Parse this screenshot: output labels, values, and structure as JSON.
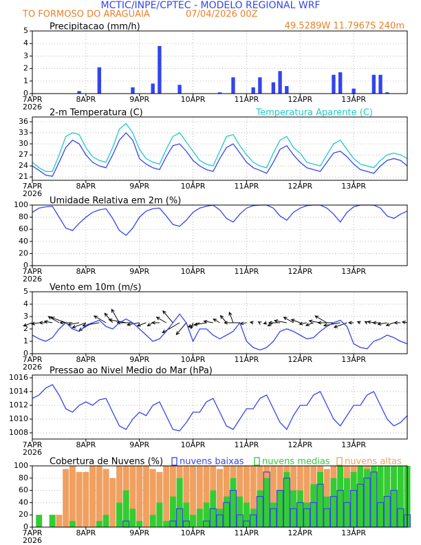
{
  "header": {
    "title": "MCTIC/INPE/CPTEC - MODELO REGIONAL WRF",
    "location": "TO FORMOSO DO ARAGUAIA",
    "run": "07/04/2026 00Z",
    "coords": "49.5289W 11.7967S 240m"
  },
  "chart_data": [
    {
      "type": "bar",
      "title": "Precipitacao (mm/h)",
      "year": "2026",
      "color": "#3344ee",
      "xlim": [
        0,
        168
      ],
      "xticks": [
        {
          "value": 0,
          "label": "7APR"
        },
        {
          "value": 24,
          "label": "8APR"
        },
        {
          "value": 48,
          "label": "9APR"
        },
        {
          "value": 72,
          "label": "10APR"
        },
        {
          "value": 96,
          "label": "11APR"
        },
        {
          "value": 120,
          "label": "12APR"
        },
        {
          "value": 144,
          "label": "13APR"
        }
      ],
      "ylim": [
        0,
        5
      ],
      "yticks": [
        0,
        1,
        2,
        3,
        4,
        5
      ],
      "grid": true,
      "x": [
        0,
        3,
        6,
        9,
        12,
        15,
        18,
        21,
        24,
        27,
        30,
        33,
        36,
        39,
        42,
        45,
        48,
        51,
        54,
        57,
        60,
        63,
        66,
        69,
        72,
        75,
        78,
        81,
        84,
        87,
        90,
        93,
        96,
        99,
        102,
        105,
        108,
        111,
        114,
        117,
        120,
        123,
        126,
        129,
        132,
        135,
        138,
        141,
        144,
        147,
        150,
        153,
        156,
        159,
        162,
        165,
        168
      ],
      "values": [
        0,
        0,
        0,
        0,
        0,
        0,
        0,
        0.2,
        0,
        0,
        2.1,
        0,
        0,
        0,
        0,
        0.5,
        0,
        0,
        0.8,
        3.8,
        0,
        0,
        0.7,
        0,
        0,
        0,
        0,
        0,
        0.1,
        0,
        1.3,
        0,
        0,
        0.5,
        1.3,
        0,
        0.9,
        1.8,
        0.6,
        0,
        0,
        0,
        0,
        0,
        0,
        1.5,
        1.7,
        0,
        0.4,
        0,
        0,
        1.5,
        1.5,
        0.1,
        0,
        0,
        0
      ]
    },
    {
      "type": "line",
      "title": "2-m Temperatura (C)",
      "year": "2026",
      "xlim": [
        0,
        168
      ],
      "xticks": [
        {
          "value": 0,
          "label": "7APR"
        },
        {
          "value": 24,
          "label": "8APR"
        },
        {
          "value": 48,
          "label": "9APR"
        },
        {
          "value": 72,
          "label": "10APR"
        },
        {
          "value": 96,
          "label": "11APR"
        },
        {
          "value": 120,
          "label": "12APR"
        },
        {
          "value": 144,
          "label": "13APR"
        }
      ],
      "ylim": [
        20.1,
        37.3
      ],
      "yticks": [
        21,
        24,
        27,
        30,
        33,
        36
      ],
      "grid": true,
      "x": [
        0,
        3,
        6,
        9,
        12,
        15,
        18,
        21,
        24,
        27,
        30,
        33,
        36,
        39,
        42,
        45,
        48,
        51,
        54,
        57,
        60,
        63,
        66,
        69,
        72,
        75,
        78,
        81,
        84,
        87,
        90,
        93,
        96,
        99,
        102,
        105,
        108,
        111,
        114,
        117,
        120,
        123,
        126,
        129,
        132,
        135,
        138,
        141,
        144,
        147,
        150,
        153,
        156,
        159,
        162,
        165,
        168
      ],
      "series": [
        {
          "color": "#3344ee",
          "values": [
            24,
            22.8,
            21.5,
            21.2,
            25,
            29,
            31,
            30,
            27,
            25,
            24,
            23.5,
            27,
            31,
            33,
            31,
            26,
            24.5,
            23.5,
            23,
            26.5,
            29.5,
            30,
            28,
            25.5,
            24,
            23,
            22.5,
            26,
            29,
            30,
            27.5,
            25,
            23.5,
            22.8,
            22,
            25,
            28.5,
            29.5,
            27,
            25,
            23.5,
            23,
            22.5,
            25,
            27.5,
            28,
            26.5,
            24.5,
            23,
            22.5,
            22,
            24,
            25.5,
            26,
            25.5,
            24
          ]
        },
        {
          "name": "Temperatura Aparente (C)",
          "color": "#22c8c8",
          "values": [
            25,
            23.5,
            22.5,
            22.5,
            27,
            32,
            33,
            32.5,
            29,
            26.5,
            25.5,
            25,
            29,
            34,
            35.5,
            33,
            28.5,
            26,
            25,
            24.5,
            28.5,
            32,
            33,
            30.5,
            28,
            25.5,
            24.5,
            24,
            28,
            32,
            32.5,
            29.5,
            27,
            25,
            24,
            23.5,
            27.5,
            31,
            32,
            29,
            27.5,
            25,
            24.5,
            24,
            27,
            30,
            31,
            28.5,
            26,
            24.5,
            24,
            23.5,
            25.5,
            27,
            27.5,
            27,
            26
          ]
        }
      ]
    },
    {
      "type": "line",
      "title": "Umidade Relativa em 2m (%)",
      "year": "2026",
      "xlim": [
        0,
        168
      ],
      "xticks": [
        {
          "value": 0,
          "label": "7APR"
        },
        {
          "value": 24,
          "label": "8APR"
        },
        {
          "value": 48,
          "label": "9APR"
        },
        {
          "value": 72,
          "label": "10APR"
        },
        {
          "value": 96,
          "label": "11APR"
        },
        {
          "value": 120,
          "label": "12APR"
        },
        {
          "value": 144,
          "label": "13APR"
        }
      ],
      "ylim": [
        0,
        100
      ],
      "yticks": [
        0,
        20,
        40,
        60,
        80,
        100
      ],
      "grid": true,
      "x": [
        0,
        3,
        6,
        9,
        12,
        15,
        18,
        21,
        24,
        27,
        30,
        33,
        36,
        39,
        42,
        45,
        48,
        51,
        54,
        57,
        60,
        63,
        66,
        69,
        72,
        75,
        78,
        81,
        84,
        87,
        90,
        93,
        96,
        99,
        102,
        105,
        108,
        111,
        114,
        117,
        120,
        123,
        126,
        129,
        132,
        135,
        138,
        141,
        144,
        147,
        150,
        153,
        156,
        159,
        162,
        165,
        168
      ],
      "series": [
        {
          "color": "#3344ee",
          "values": [
            88,
            95,
            97,
            98,
            80,
            62,
            58,
            70,
            80,
            88,
            92,
            94,
            78,
            58,
            50,
            62,
            80,
            90,
            94,
            95,
            82,
            68,
            65,
            75,
            88,
            95,
            98,
            100,
            92,
            78,
            72,
            85,
            95,
            99,
            100,
            100,
            95,
            82,
            75,
            88,
            95,
            99,
            100,
            100,
            95,
            85,
            72,
            88,
            97,
            100,
            100,
            100,
            95,
            82,
            78,
            85,
            90
          ]
        }
      ]
    },
    {
      "type": "line",
      "title": "Vento em 10m (m/s)",
      "year": "2026",
      "xlim": [
        0,
        168
      ],
      "xticks": [
        {
          "value": 0,
          "label": "7APR"
        },
        {
          "value": 24,
          "label": "8APR"
        },
        {
          "value": 48,
          "label": "9APR"
        },
        {
          "value": 72,
          "label": "10APR"
        },
        {
          "value": 96,
          "label": "11APR"
        },
        {
          "value": 120,
          "label": "12APR"
        },
        {
          "value": 144,
          "label": "13APR"
        }
      ],
      "ylim": [
        0,
        5
      ],
      "yticks": [
        0,
        1,
        2,
        3,
        4,
        5
      ],
      "grid": true,
      "x": [
        0,
        3,
        6,
        9,
        12,
        15,
        18,
        21,
        24,
        27,
        30,
        33,
        36,
        39,
        42,
        45,
        48,
        51,
        54,
        57,
        60,
        63,
        66,
        69,
        72,
        75,
        78,
        81,
        84,
        87,
        90,
        93,
        96,
        99,
        102,
        105,
        108,
        111,
        114,
        117,
        120,
        123,
        126,
        129,
        132,
        135,
        138,
        141,
        144,
        147,
        150,
        153,
        156,
        159,
        162,
        165,
        168
      ],
      "series": [
        {
          "color": "#3344ee",
          "values": [
            1.5,
            1.2,
            1.0,
            1.3,
            2.0,
            2.5,
            2.0,
            1.8,
            2.3,
            2.5,
            2.7,
            2.2,
            2.0,
            2.5,
            2.8,
            2.5,
            2.0,
            1.5,
            1.0,
            1.2,
            1.8,
            2.5,
            3.2,
            2.5,
            1.0,
            2.0,
            2.0,
            1.5,
            1.2,
            1.5,
            1.8,
            2.5,
            1.0,
            0.5,
            0.3,
            0.5,
            1.0,
            1.8,
            2.0,
            1.8,
            1.5,
            1.2,
            1.3,
            1.8,
            2.2,
            2.5,
            2.7,
            2.2,
            0.8,
            0.5,
            0.4,
            1.0,
            1.2,
            1.5,
            1.3,
            1.0,
            0.8
          ]
        }
      ],
      "directions": [
        250,
        260,
        270,
        280,
        300,
        290,
        270,
        260,
        250,
        240,
        260,
        300,
        320,
        330,
        280,
        270,
        260,
        250,
        240,
        270,
        300,
        320,
        240,
        220,
        200,
        250,
        260,
        280,
        300,
        320,
        340,
        270,
        260,
        280,
        300,
        250,
        240,
        270,
        280,
        300,
        290,
        260,
        250,
        280,
        300,
        270,
        260,
        250,
        270,
        290,
        300,
        280,
        270,
        260,
        250,
        270,
        280
      ]
    },
    {
      "type": "line",
      "title": "Pressao ao Nivel Medio do Mar (hPa)",
      "year": "2026",
      "xlim": [
        0,
        168
      ],
      "xticks": [
        {
          "value": 0,
          "label": "7APR"
        },
        {
          "value": 24,
          "label": "8APR"
        },
        {
          "value": 48,
          "label": "9APR"
        },
        {
          "value": 72,
          "label": "10APR"
        },
        {
          "value": 96,
          "label": "11APR"
        },
        {
          "value": 120,
          "label": "12APR"
        },
        {
          "value": 144,
          "label": "13APR"
        }
      ],
      "ylim": [
        1007.1,
        1016.4
      ],
      "yticks": [
        1008,
        1010,
        1012,
        1014,
        1016
      ],
      "grid": true,
      "x": [
        0,
        3,
        6,
        9,
        12,
        15,
        18,
        21,
        24,
        27,
        30,
        33,
        36,
        39,
        42,
        45,
        48,
        51,
        54,
        57,
        60,
        63,
        66,
        69,
        72,
        75,
        78,
        81,
        84,
        87,
        90,
        93,
        96,
        99,
        102,
        105,
        108,
        111,
        114,
        117,
        120,
        123,
        126,
        129,
        132,
        135,
        138,
        141,
        144,
        147,
        150,
        153,
        156,
        159,
        162,
        165,
        168
      ],
      "series": [
        {
          "color": "#3344ee",
          "values": [
            1013,
            1013.5,
            1014.5,
            1015,
            1013.5,
            1011.5,
            1011,
            1012,
            1012.5,
            1012,
            1012.8,
            1013,
            1011,
            1009,
            1008.5,
            1010,
            1011,
            1010.5,
            1012,
            1012.5,
            1010.5,
            1008.5,
            1008.3,
            1009.5,
            1011,
            1011,
            1012.5,
            1013,
            1011,
            1009,
            1008.5,
            1010,
            1011.5,
            1011.5,
            1013,
            1013.5,
            1011.5,
            1009.5,
            1008.5,
            1010.5,
            1012,
            1012,
            1013.5,
            1014,
            1012,
            1010,
            1009,
            1010.5,
            1012,
            1012,
            1013.5,
            1014,
            1012,
            1010,
            1009,
            1009.5,
            1010.5
          ]
        }
      ]
    },
    {
      "type": "bar",
      "title": "Cobertura de Nuvens (%)",
      "year": "2026",
      "barmode": "overlay",
      "xlim": [
        0,
        168
      ],
      "xticks": [
        {
          "value": 0,
          "label": "7APR"
        },
        {
          "value": 24,
          "label": "8APR"
        },
        {
          "value": 48,
          "label": "9APR"
        },
        {
          "value": 72,
          "label": "10APR"
        },
        {
          "value": 96,
          "label": "11APR"
        },
        {
          "value": 120,
          "label": "12APR"
        },
        {
          "value": 144,
          "label": "13APR"
        }
      ],
      "ylim": [
        0,
        100
      ],
      "yticks": [
        0,
        20,
        40,
        60,
        80,
        100
      ],
      "grid": true,
      "x": [
        0,
        3,
        6,
        9,
        12,
        15,
        18,
        21,
        24,
        27,
        30,
        33,
        36,
        39,
        42,
        45,
        48,
        51,
        54,
        57,
        60,
        63,
        66,
        69,
        72,
        75,
        78,
        81,
        84,
        87,
        90,
        93,
        96,
        99,
        102,
        105,
        108,
        111,
        114,
        117,
        120,
        123,
        126,
        129,
        132,
        135,
        138,
        141,
        144,
        147,
        150,
        153,
        156,
        159,
        162,
        165,
        168
      ],
      "series": [
        {
          "name": "nuvens baixas",
          "color": "#3344ee",
          "filled": false,
          "values": [
            0,
            0,
            0,
            0,
            0,
            0,
            0,
            0,
            0,
            0,
            0,
            0,
            0,
            0,
            10,
            0,
            0,
            0,
            0,
            0,
            0,
            10,
            30,
            10,
            0,
            0,
            10,
            30,
            20,
            40,
            60,
            20,
            10,
            20,
            50,
            90,
            30,
            60,
            80,
            30,
            40,
            30,
            40,
            70,
            30,
            50,
            60,
            40,
            60,
            70,
            80,
            90,
            40,
            50,
            60,
            30,
            20
          ]
        },
        {
          "name": "nuvens medias",
          "color": "#33cc33",
          "filled": true,
          "values": [
            0,
            20,
            0,
            20,
            0,
            0,
            10,
            0,
            0,
            0,
            10,
            20,
            0,
            40,
            60,
            30,
            10,
            0,
            20,
            40,
            10,
            50,
            80,
            40,
            20,
            30,
            40,
            60,
            30,
            50,
            80,
            50,
            40,
            30,
            60,
            80,
            40,
            60,
            90,
            60,
            60,
            40,
            70,
            90,
            50,
            80,
            100,
            80,
            90,
            100,
            95,
            100,
            100,
            100,
            100,
            100,
            100
          ]
        },
        {
          "name": "nuvens altas",
          "color": "#f0a060",
          "filled": true,
          "values": [
            0,
            0,
            0,
            0,
            20,
            95,
            100,
            90,
            90,
            100,
            100,
            95,
            80,
            100,
            100,
            100,
            100,
            100,
            95,
            90,
            100,
            100,
            100,
            100,
            100,
            100,
            100,
            100,
            95,
            100,
            100,
            100,
            100,
            100,
            100,
            100,
            100,
            100,
            100,
            100,
            100,
            100,
            100,
            100,
            95,
            100,
            100,
            100,
            100,
            100,
            100,
            100,
            80,
            60,
            70,
            60,
            50
          ]
        }
      ]
    }
  ]
}
